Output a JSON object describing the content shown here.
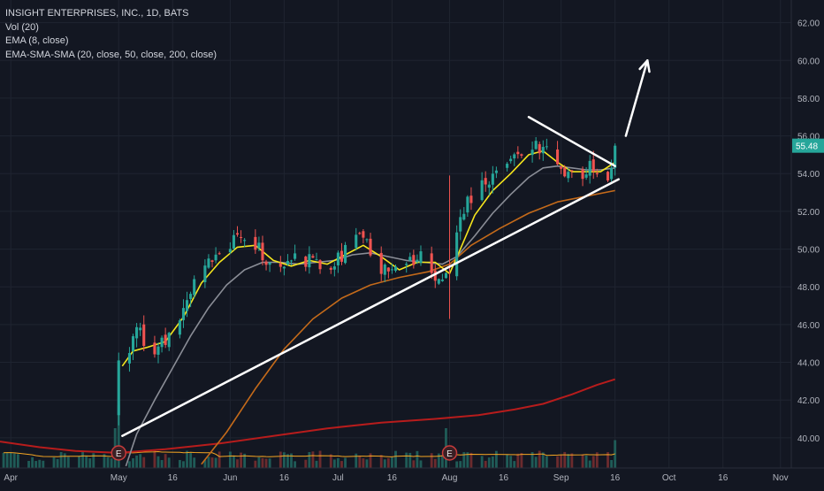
{
  "legend": {
    "title": "INSIGHT ENTERPRISES, INC., 1D, BATS",
    "vol": "Vol (20)",
    "ema": "EMA (8, close)",
    "ma_set": "EMA-SMA-SMA (20, close, 50, close, 200, close)"
  },
  "colors": {
    "background": "#131722",
    "grid": "#1f2430",
    "up": "#26a69a",
    "down": "#ef5350",
    "ema8": "#f5e51d",
    "ema20": "#8a8d96",
    "sma50": "#c46a1a",
    "sma200": "#b71c1c",
    "vol_ma": "#f5a623",
    "trendline": "#ffffff",
    "price_tag": "#26a69a",
    "earnings_marker": "#c73b3b"
  },
  "chart_data": {
    "type": "candlestick",
    "title": "INSIGHT ENTERPRISES, INC., 1D, BATS",
    "y_range": [
      38.4,
      63.2
    ],
    "y_ticks": [
      "40.00",
      "42.00",
      "44.00",
      "46.00",
      "48.00",
      "50.00",
      "52.00",
      "54.00",
      "56.00",
      "58.00",
      "60.00",
      "62.00"
    ],
    "y_tick_values": [
      40,
      42,
      44,
      46,
      48,
      50,
      52,
      54,
      56,
      58,
      60,
      62
    ],
    "x_ticks": [
      {
        "label": "Apr",
        "day": 2
      },
      {
        "label": "May",
        "day": 32
      },
      {
        "label": "16",
        "day": 47
      },
      {
        "label": "Jun",
        "day": 63
      },
      {
        "label": "16",
        "day": 78
      },
      {
        "label": "Jul",
        "day": 93
      },
      {
        "label": "16",
        "day": 108
      },
      {
        "label": "Aug",
        "day": 124
      },
      {
        "label": "16",
        "day": 139
      },
      {
        "label": "Sep",
        "day": 155
      },
      {
        "label": "16",
        "day": 170
      },
      {
        "label": "Oct",
        "day": 185
      },
      {
        "label": "16",
        "day": 200
      },
      {
        "label": "Nov",
        "day": 216
      }
    ],
    "x_domain_days": [
      -1,
      219
    ],
    "last_price": "55.48",
    "earnings_markers": [
      {
        "label": "E",
        "day": 32
      },
      {
        "label": "E",
        "day": 124
      }
    ],
    "earnings_volume_peaks": [
      {
        "day": 32,
        "label": "May earnings session"
      },
      {
        "day": 124,
        "label": "Aug earnings session"
      }
    ],
    "gap_day": 32,
    "pre_gap_level": 39.4,
    "post_gap_open": 41.2,
    "waypoints": [
      [
        32,
        41.5
      ],
      [
        34,
        44.2
      ],
      [
        37,
        45.8
      ],
      [
        40,
        44.6
      ],
      [
        43,
        44.9
      ],
      [
        46,
        45.5
      ],
      [
        49,
        46.5
      ],
      [
        52,
        47.7
      ],
      [
        55,
        48.9
      ],
      [
        58,
        49.6
      ],
      [
        61,
        49.8
      ],
      [
        64,
        50.4
      ],
      [
        67,
        50.6
      ],
      [
        70,
        50.3
      ],
      [
        72,
        49.5
      ],
      [
        74,
        49.0
      ],
      [
        77,
        48.9
      ],
      [
        80,
        49.2
      ],
      [
        83,
        49.6
      ],
      [
        86,
        49.3
      ],
      [
        89,
        49.0
      ],
      [
        92,
        49.4
      ],
      [
        95,
        49.9
      ],
      [
        98,
        50.5
      ],
      [
        101,
        50.2
      ],
      [
        104,
        49.3
      ],
      [
        107,
        48.7
      ],
      [
        110,
        48.6
      ],
      [
        113,
        49.4
      ],
      [
        116,
        49.5
      ],
      [
        119,
        49.0
      ],
      [
        122,
        48.2
      ],
      [
        124,
        48.6
      ],
      [
        126,
        51.2
      ],
      [
        129,
        52.4
      ],
      [
        132,
        53.3
      ],
      [
        136,
        53.9
      ],
      [
        140,
        54.4
      ],
      [
        143,
        55.1
      ],
      [
        146,
        55.7
      ],
      [
        148,
        55.6
      ],
      [
        151,
        55.0
      ],
      [
        154,
        54.2
      ],
      [
        157,
        53.9
      ],
      [
        160,
        54.0
      ],
      [
        163,
        54.3
      ],
      [
        166,
        54.1
      ],
      [
        168,
        54.0
      ],
      [
        170,
        55.48
      ]
    ],
    "ema8_line": [
      [
        33,
        43.8
      ],
      [
        36,
        44.6
      ],
      [
        40,
        44.8
      ],
      [
        45,
        45.1
      ],
      [
        50,
        46.4
      ],
      [
        55,
        48.2
      ],
      [
        60,
        49.3
      ],
      [
        65,
        50.1
      ],
      [
        70,
        50.2
      ],
      [
        75,
        49.4
      ],
      [
        80,
        49.1
      ],
      [
        85,
        49.4
      ],
      [
        90,
        49.2
      ],
      [
        95,
        49.7
      ],
      [
        100,
        50.2
      ],
      [
        105,
        49.6
      ],
      [
        110,
        48.9
      ],
      [
        115,
        49.3
      ],
      [
        120,
        49.3
      ],
      [
        124,
        48.7
      ],
      [
        127,
        50.0
      ],
      [
        131,
        51.8
      ],
      [
        136,
        53.1
      ],
      [
        141,
        54.0
      ],
      [
        146,
        55.0
      ],
      [
        150,
        55.2
      ],
      [
        154,
        54.6
      ],
      [
        158,
        54.1
      ],
      [
        162,
        54.1
      ],
      [
        166,
        54.1
      ],
      [
        170,
        54.6
      ]
    ],
    "ema20_line": [
      [
        34,
        38.5
      ],
      [
        37,
        40.2
      ],
      [
        42,
        42.0
      ],
      [
        47,
        43.7
      ],
      [
        52,
        45.4
      ],
      [
        57,
        46.9
      ],
      [
        62,
        48.1
      ],
      [
        67,
        48.9
      ],
      [
        72,
        49.3
      ],
      [
        77,
        49.3
      ],
      [
        82,
        49.2
      ],
      [
        87,
        49.3
      ],
      [
        92,
        49.4
      ],
      [
        97,
        49.7
      ],
      [
        102,
        49.8
      ],
      [
        107,
        49.6
      ],
      [
        112,
        49.4
      ],
      [
        117,
        49.3
      ],
      [
        122,
        49.2
      ],
      [
        126,
        49.6
      ],
      [
        131,
        50.7
      ],
      [
        136,
        51.9
      ],
      [
        141,
        52.9
      ],
      [
        146,
        53.8
      ],
      [
        150,
        54.3
      ],
      [
        154,
        54.4
      ],
      [
        158,
        54.3
      ],
      [
        162,
        54.2
      ],
      [
        166,
        54.2
      ],
      [
        170,
        54.3
      ]
    ],
    "sma50_line": [
      [
        55,
        38.6
      ],
      [
        62,
        40.3
      ],
      [
        70,
        42.6
      ],
      [
        78,
        44.7
      ],
      [
        86,
        46.3
      ],
      [
        94,
        47.4
      ],
      [
        102,
        48.1
      ],
      [
        110,
        48.5
      ],
      [
        118,
        48.8
      ],
      [
        124,
        49.2
      ],
      [
        130,
        50.2
      ],
      [
        138,
        51.1
      ],
      [
        146,
        51.9
      ],
      [
        154,
        52.5
      ],
      [
        162,
        52.8
      ],
      [
        170,
        53.1
      ]
    ],
    "sma200_line": [
      [
        -1,
        39.8
      ],
      [
        10,
        39.5
      ],
      [
        20,
        39.3
      ],
      [
        32,
        39.2
      ],
      [
        45,
        39.4
      ],
      [
        60,
        39.7
      ],
      [
        75,
        40.1
      ],
      [
        90,
        40.5
      ],
      [
        105,
        40.8
      ],
      [
        120,
        41.0
      ],
      [
        132,
        41.2
      ],
      [
        142,
        41.5
      ],
      [
        150,
        41.8
      ],
      [
        158,
        42.3
      ],
      [
        165,
        42.8
      ],
      [
        170,
        43.1
      ]
    ],
    "trendline_up": [
      [
        33,
        40.1
      ],
      [
        171,
        53.7
      ]
    ],
    "trendline_down": [
      [
        146,
        57.0
      ],
      [
        170,
        54.4
      ]
    ],
    "projection_arrow": [
      [
        173,
        56.0
      ],
      [
        179,
        60.0
      ]
    ]
  }
}
